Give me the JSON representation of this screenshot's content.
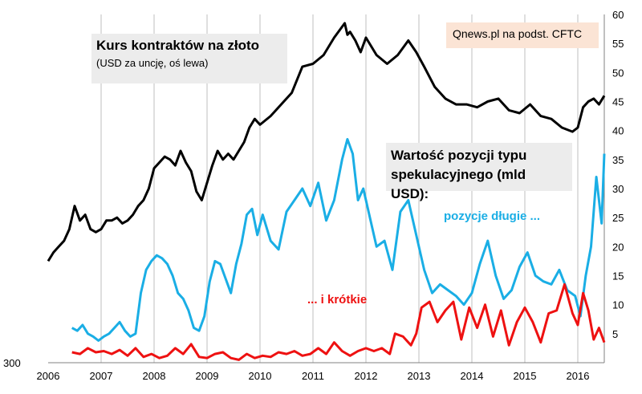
{
  "chart_data": {
    "type": "line",
    "x_range": [
      2006,
      2016.5
    ],
    "x_ticks": [
      "2006",
      "2007",
      "2008",
      "2009",
      "2010",
      "2011",
      "2012",
      "2013",
      "2014",
      "2015",
      "2016"
    ],
    "y_left_bottom_label": "300",
    "y_right_range": [
      0,
      60
    ],
    "y_right_ticks": [
      "5",
      "10",
      "15",
      "20",
      "25",
      "30",
      "35",
      "40",
      "45",
      "50",
      "55",
      "60"
    ],
    "grid": "vertical lines at each year",
    "title": "Kurs kontraktów na złoto",
    "subtitle": "(USD za uncję, oś lewa)",
    "source": "Qnews.pl na podst. CFTC",
    "annotation_title": "Wartość pozycji typu spekulacyjnego (mld USD):",
    "annotation_title_line1": "Wartość pozycji typu",
    "annotation_title_line2": "spekulacyjnego (mld USD):",
    "colors": {
      "gold": "#000000",
      "long": "#1aaee5",
      "short": "#ee1111"
    },
    "series": [
      {
        "name": "",
        "axis": "left-gold-price-scaled-to-right",
        "x": [
          2006.0,
          2006.1,
          2006.2,
          2006.3,
          2006.4,
          2006.5,
          2006.6,
          2006.7,
          2006.8,
          2006.9,
          2007.0,
          2007.1,
          2007.2,
          2007.3,
          2007.4,
          2007.5,
          2007.6,
          2007.7,
          2007.8,
          2007.9,
          2008.0,
          2008.1,
          2008.2,
          2008.3,
          2008.4,
          2008.5,
          2008.6,
          2008.7,
          2008.8,
          2008.9,
          2009.0,
          2009.1,
          2009.2,
          2009.3,
          2009.4,
          2009.5,
          2009.6,
          2009.7,
          2009.8,
          2009.9,
          2010.0,
          2010.2,
          2010.4,
          2010.6,
          2010.8,
          2011.0,
          2011.2,
          2011.4,
          2011.6,
          2011.65,
          2011.7,
          2011.8,
          2011.9,
          2012.0,
          2012.2,
          2012.4,
          2012.6,
          2012.8,
          2012.95,
          2013.1,
          2013.3,
          2013.5,
          2013.7,
          2013.9,
          2014.1,
          2014.3,
          2014.5,
          2014.7,
          2014.9,
          2015.1,
          2015.3,
          2015.5,
          2015.7,
          2015.9,
          2016.0,
          2016.1,
          2016.2,
          2016.3,
          2016.4,
          2016.5
        ],
        "values": [
          17.5,
          19.0,
          20.0,
          21.0,
          23.0,
          27.0,
          24.5,
          25.5,
          23.0,
          22.5,
          23.0,
          24.5,
          24.5,
          25.0,
          24.0,
          24.5,
          25.5,
          27.0,
          28.0,
          30.0,
          33.5,
          34.5,
          35.5,
          35.0,
          34.0,
          36.5,
          34.5,
          33.0,
          29.5,
          28.0,
          31.0,
          34.0,
          36.5,
          35.0,
          36.0,
          35.0,
          36.5,
          38.0,
          40.5,
          42.0,
          41.0,
          42.5,
          44.5,
          46.5,
          51.0,
          51.5,
          53.0,
          56.0,
          58.5,
          56.5,
          57.0,
          55.5,
          53.5,
          56.0,
          53.0,
          51.5,
          53.0,
          55.5,
          53.5,
          51.0,
          47.5,
          45.5,
          44.5,
          44.5,
          44.0,
          45.0,
          45.5,
          43.5,
          43.0,
          44.5,
          42.5,
          42.0,
          40.5,
          39.8,
          40.5,
          44.0,
          45.0,
          45.5,
          44.5,
          46.0
        ]
      },
      {
        "name": "pozycje długie ...",
        "x": [
          2006.45,
          2006.55,
          2006.65,
          2006.75,
          2006.85,
          2006.95,
          2007.05,
          2007.15,
          2007.25,
          2007.35,
          2007.45,
          2007.55,
          2007.65,
          2007.75,
          2007.85,
          2007.95,
          2008.05,
          2008.15,
          2008.25,
          2008.35,
          2008.45,
          2008.55,
          2008.65,
          2008.75,
          2008.85,
          2008.95,
          2009.05,
          2009.15,
          2009.25,
          2009.35,
          2009.45,
          2009.55,
          2009.65,
          2009.75,
          2009.85,
          2009.95,
          2010.05,
          2010.2,
          2010.35,
          2010.5,
          2010.65,
          2010.8,
          2010.95,
          2011.1,
          2011.25,
          2011.4,
          2011.55,
          2011.65,
          2011.75,
          2011.85,
          2011.95,
          2012.05,
          2012.2,
          2012.35,
          2012.5,
          2012.65,
          2012.8,
          2012.95,
          2013.1,
          2013.25,
          2013.4,
          2013.55,
          2013.7,
          2013.85,
          2014.0,
          2014.15,
          2014.3,
          2014.45,
          2014.6,
          2014.75,
          2014.9,
          2015.05,
          2015.2,
          2015.35,
          2015.5,
          2015.65,
          2015.8,
          2015.95,
          2016.05,
          2016.15,
          2016.25,
          2016.35,
          2016.45,
          2016.5
        ],
        "values": [
          6.0,
          5.5,
          6.5,
          5.0,
          4.5,
          3.8,
          4.5,
          5.0,
          6.0,
          7.0,
          5.5,
          4.5,
          5.0,
          12.0,
          16.0,
          17.5,
          18.5,
          18.0,
          17.0,
          15.0,
          12.0,
          11.0,
          9.0,
          6.0,
          5.5,
          8.0,
          14.0,
          17.5,
          17.0,
          14.5,
          12.0,
          17.0,
          20.5,
          25.5,
          26.5,
          22.0,
          25.5,
          21.0,
          19.5,
          26.0,
          28.0,
          30.0,
          27.0,
          31.0,
          24.5,
          28.0,
          35.0,
          38.5,
          36.0,
          28.0,
          30.0,
          26.0,
          20.0,
          21.0,
          16.0,
          26.0,
          28.0,
          22.0,
          16.0,
          12.0,
          13.5,
          12.5,
          11.5,
          10.0,
          12.0,
          17.0,
          21.0,
          15.0,
          11.0,
          12.5,
          16.5,
          19.0,
          15.0,
          14.0,
          13.5,
          16.0,
          12.5,
          11.5,
          8.0,
          15.0,
          20.0,
          32.0,
          24.0,
          36.0
        ]
      },
      {
        "name": "... i krótkie",
        "x": [
          2006.45,
          2006.6,
          2006.75,
          2006.9,
          2007.05,
          2007.2,
          2007.35,
          2007.5,
          2007.65,
          2007.8,
          2007.95,
          2008.1,
          2008.25,
          2008.4,
          2008.55,
          2008.7,
          2008.85,
          2009.0,
          2009.15,
          2009.3,
          2009.45,
          2009.6,
          2009.75,
          2009.9,
          2010.05,
          2010.2,
          2010.35,
          2010.5,
          2010.65,
          2010.8,
          2010.95,
          2011.1,
          2011.25,
          2011.4,
          2011.55,
          2011.7,
          2011.85,
          2012.0,
          2012.15,
          2012.3,
          2012.45,
          2012.55,
          2012.7,
          2012.85,
          2012.95,
          2013.05,
          2013.2,
          2013.35,
          2013.5,
          2013.65,
          2013.8,
          2013.95,
          2014.1,
          2014.25,
          2014.4,
          2014.55,
          2014.7,
          2014.85,
          2015.0,
          2015.15,
          2015.3,
          2015.45,
          2015.6,
          2015.75,
          2015.9,
          2016.0,
          2016.1,
          2016.2,
          2016.3,
          2016.4,
          2016.5
        ],
        "values": [
          1.8,
          1.5,
          2.5,
          1.8,
          2.0,
          1.5,
          2.2,
          1.2,
          2.5,
          1.0,
          1.5,
          0.8,
          1.2,
          2.5,
          1.5,
          3.2,
          1.0,
          0.8,
          1.5,
          1.8,
          0.8,
          0.5,
          1.5,
          0.8,
          1.2,
          1.0,
          1.8,
          1.5,
          2.0,
          1.2,
          1.5,
          2.5,
          1.5,
          3.5,
          2.0,
          1.2,
          2.0,
          2.5,
          2.0,
          2.5,
          1.5,
          5.0,
          4.5,
          3.0,
          5.0,
          9.5,
          10.5,
          7.0,
          9.0,
          10.5,
          4.0,
          9.5,
          6.0,
          10.0,
          4.5,
          9.0,
          3.0,
          7.0,
          9.5,
          7.0,
          3.5,
          8.5,
          9.0,
          13.5,
          8.5,
          6.5,
          12.0,
          9.0,
          4.0,
          6.0,
          3.5
        ]
      }
    ],
    "labels": {
      "long": "pozycje długie ...",
      "short": "... i krótkie"
    }
  }
}
